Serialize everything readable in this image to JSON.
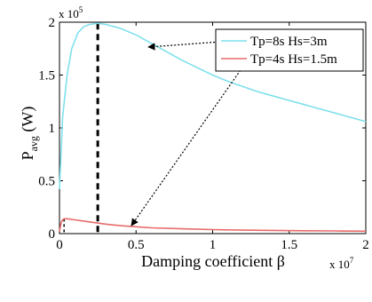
{
  "chart_data": {
    "type": "line",
    "xlabel": "Damping coefficient β",
    "x_multiplier": "x 10",
    "x_multiplier_exp": "7",
    "ylabel_main": "P",
    "ylabel_sub": "avg",
    "ylabel_unit": " (W)",
    "y_multiplier": "x 10",
    "y_multiplier_exp": "5",
    "xlim": [
      0,
      2
    ],
    "ylim": [
      0,
      2
    ],
    "x_ticks": [
      0,
      0.5,
      1,
      1.5,
      2
    ],
    "x_tick_labels": [
      "0",
      "0.5",
      "1",
      "1.5",
      "2"
    ],
    "y_ticks": [
      0,
      0.5,
      1,
      1.5,
      2
    ],
    "y_tick_labels": [
      "0",
      "0.5",
      "1",
      "1.5",
      "2"
    ],
    "grid": false,
    "legend_position": "top-right",
    "series": [
      {
        "name": "Tp=8s Hs=3m",
        "color": "#7fe0ec",
        "x": [
          0,
          0.02,
          0.05,
          0.08,
          0.12,
          0.16,
          0.2,
          0.25,
          0.3,
          0.4,
          0.5,
          0.6,
          0.7,
          0.8,
          0.9,
          1.0,
          1.1,
          1.2,
          1.3,
          1.4,
          1.5,
          1.6,
          1.7,
          1.8,
          1.9,
          2.0
        ],
        "y": [
          0.42,
          1.1,
          1.5,
          1.75,
          1.9,
          1.96,
          1.98,
          1.99,
          1.98,
          1.94,
          1.88,
          1.8,
          1.72,
          1.64,
          1.57,
          1.5,
          1.44,
          1.39,
          1.34,
          1.3,
          1.26,
          1.22,
          1.18,
          1.14,
          1.1,
          1.06
        ]
      },
      {
        "name": "Tp=4s Hs=1.5m",
        "color": "#e86a6a",
        "x": [
          0,
          0.01,
          0.02,
          0.03,
          0.05,
          0.1,
          0.2,
          0.3,
          0.4,
          0.5,
          0.6,
          0.8,
          1.0,
          1.2,
          1.4,
          1.6,
          1.8,
          2.0
        ],
        "y": [
          0.02,
          0.1,
          0.13,
          0.14,
          0.14,
          0.13,
          0.11,
          0.09,
          0.075,
          0.065,
          0.055,
          0.045,
          0.038,
          0.033,
          0.03,
          0.027,
          0.025,
          0.023
        ]
      }
    ],
    "peak_markers": [
      {
        "series": "Tp=8s Hs=3m",
        "x": 0.25,
        "y": 1.99
      },
      {
        "series": "Tp=4s Hs=1.5m",
        "x": 0.03,
        "y": 0.14
      }
    ]
  }
}
